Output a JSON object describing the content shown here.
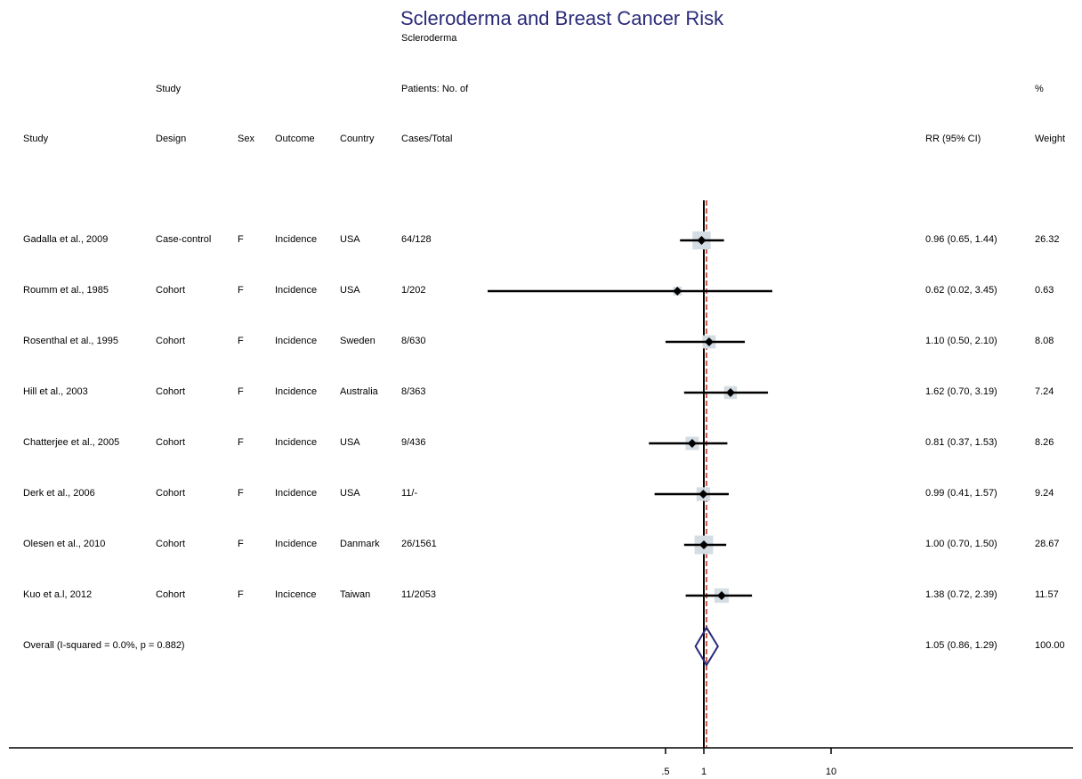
{
  "chart_data": {
    "type": "forest",
    "title": "Scleroderma and Breast Cancer Risk",
    "subtitle": "Scleroderma",
    "header_top": {
      "design": "Study",
      "cases": "Patients: No. of",
      "weight": "%"
    },
    "headers": {
      "study": "Study",
      "design": "Design",
      "sex": "Sex",
      "outcome": "Outcome",
      "country": "Country",
      "cases": "Cases/Total",
      "rr": "RR (95% CI)",
      "weight": "Weight"
    },
    "rows": [
      {
        "study": "Gadalla et al., 2009",
        "design": "Case-control",
        "sex": "F",
        "outcome": "Incidence",
        "country": "USA",
        "cases": "64/128",
        "rr_text": "0.96 (0.65, 1.44)",
        "weight": "26.32",
        "rr": 0.96,
        "lo": 0.65,
        "hi": 1.44,
        "w": 26.32
      },
      {
        "study": "Roumm et al., 1985",
        "design": "Cohort",
        "sex": "F",
        "outcome": "Incidence",
        "country": "USA",
        "cases": "1/202",
        "rr_text": "0.62 (0.02, 3.45)",
        "weight": "0.63",
        "rr": 0.62,
        "lo": 0.02,
        "hi": 3.45,
        "w": 0.63
      },
      {
        "study": "Rosenthal et al., 1995",
        "design": "Cohort",
        "sex": "F",
        "outcome": "Incidence",
        "country": "Sweden",
        "cases": "8/630",
        "rr_text": "1.10 (0.50, 2.10)",
        "weight": "8.08",
        "rr": 1.1,
        "lo": 0.5,
        "hi": 2.1,
        "w": 8.08
      },
      {
        "study": "Hill et al., 2003",
        "design": "Cohort",
        "sex": "F",
        "outcome": "Incidence",
        "country": "Australia",
        "cases": "8/363",
        "rr_text": "1.62 (0.70, 3.19)",
        "weight": "7.24",
        "rr": 1.62,
        "lo": 0.7,
        "hi": 3.19,
        "w": 7.24
      },
      {
        "study": "Chatterjee et al., 2005",
        "design": "Cohort",
        "sex": "F",
        "outcome": "Incidence",
        "country": "USA",
        "cases": "9/436",
        "rr_text": "0.81 (0.37, 1.53)",
        "weight": "8.26",
        "rr": 0.81,
        "lo": 0.37,
        "hi": 1.53,
        "w": 8.26
      },
      {
        "study": "Derk et al., 2006",
        "design": "Cohort",
        "sex": "F",
        "outcome": "Incidence",
        "country": "USA",
        "cases": "11/-",
        "rr_text": "0.99 (0.41, 1.57)",
        "weight": "9.24",
        "rr": 0.99,
        "lo": 0.41,
        "hi": 1.57,
        "w": 9.24
      },
      {
        "study": "Olesen et al., 2010",
        "design": "Cohort",
        "sex": "F",
        "outcome": "Incidence",
        "country": "Danmark",
        "cases": "26/1561",
        "rr_text": "1.00 (0.70, 1.50)",
        "weight": "28.67",
        "rr": 1.0,
        "lo": 0.7,
        "hi": 1.5,
        "w": 28.67
      },
      {
        "study": "Kuo et a.l, 2012",
        "design": "Cohort",
        "sex": "F",
        "outcome": "Incicence",
        "country": "Taiwan",
        "cases": "11/2053",
        "rr_text": "1.38 (0.72, 2.39)",
        "weight": "11.57",
        "rr": 1.38,
        "lo": 0.72,
        "hi": 2.39,
        "w": 11.57
      }
    ],
    "overall": {
      "label": "Overall  (I-squared = 0.0%, p = 0.882)",
      "rr_text": "1.05 (0.86, 1.29)",
      "weight": "100.00",
      "rr": 1.05,
      "lo": 0.86,
      "hi": 1.29
    },
    "x_scale": "log",
    "x_ticks": [
      0.5,
      1,
      10
    ],
    "x_tick_labels": [
      ".5",
      "1",
      "10"
    ],
    "null_line": 1,
    "colors": {
      "title": "#2a2a7a",
      "diamond": "#2a2a7a",
      "overall_line": "#c0392b",
      "weight_box": "#d3dde3"
    }
  }
}
